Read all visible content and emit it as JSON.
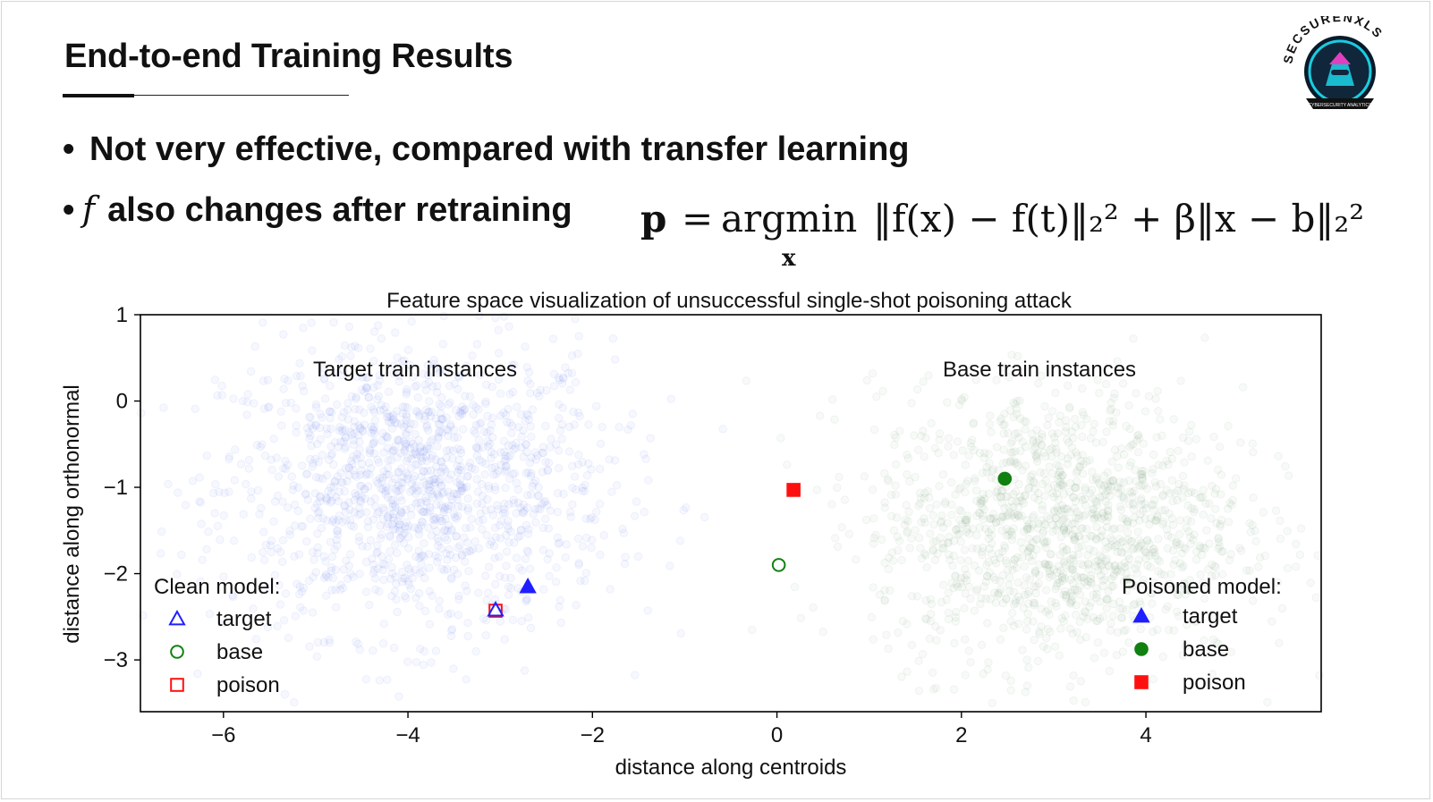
{
  "slide": {
    "title": "End-to-end Training Results",
    "bullets": [
      "Not very effective, compared with transfer learning",
      "also changes after retraining"
    ],
    "bullet_var": "f",
    "formula": {
      "lhs": "p",
      "op": "=",
      "argmin": "argmin",
      "sub": "x",
      "body": "‖f(x) − f(t)‖₂² + β‖x − b‖₂²"
    },
    "logo_text": "SECSURENXLS",
    "logo_tagline": "CYBERSECURITY ANALYTICS"
  },
  "colors": {
    "target": "#1f1fff",
    "base": "#108010",
    "poison": "#ff1010",
    "target_cloud": "#5a7ae6",
    "base_cloud": "#6f9a6f"
  },
  "chart_data": {
    "type": "scatter",
    "title": "Feature space visualization of unsuccessful single-shot poisoning attack",
    "xlabel": "distance along centroids",
    "ylabel": "distance along orthonormal",
    "xlim": [
      -6.9,
      5.9
    ],
    "ylim": [
      -3.6,
      1.0
    ],
    "xticks": [
      -6,
      -4,
      -2,
      0,
      2,
      4
    ],
    "xtick_labels": [
      "−6",
      "−4",
      "−2",
      "0",
      "2",
      "4"
    ],
    "yticks": [
      1,
      0,
      -1,
      -2,
      -3
    ],
    "ytick_labels": [
      "1",
      "0",
      "−1",
      "−2",
      "−3"
    ],
    "grid": false,
    "clusters": [
      {
        "name": "Target train instances",
        "center": [
          -3.9,
          -1.0
        ],
        "spread": [
          1.05,
          0.85
        ],
        "color_key": "target_cloud"
      },
      {
        "name": "Base train instances",
        "center": [
          3.05,
          -1.45
        ],
        "spread": [
          1.0,
          0.8
        ],
        "color_key": "base_cloud"
      }
    ],
    "clean_model": {
      "legend_title": "Clean model:",
      "points": [
        {
          "label": "target",
          "marker": "triangle",
          "filled": false,
          "x": -3.05,
          "y": -2.42
        },
        {
          "label": "base",
          "marker": "circle",
          "filled": false,
          "x": 0.02,
          "y": -1.9
        },
        {
          "label": "poison",
          "marker": "square",
          "filled": false,
          "x": -3.05,
          "y": -2.43
        }
      ]
    },
    "poisoned_model": {
      "legend_title": "Poisoned model:",
      "points": [
        {
          "label": "target",
          "marker": "triangle",
          "filled": true,
          "x": -2.7,
          "y": -2.15
        },
        {
          "label": "base",
          "marker": "circle",
          "filled": true,
          "x": 2.47,
          "y": -0.9
        },
        {
          "label": "poison",
          "marker": "square",
          "filled": true,
          "x": 0.18,
          "y": -1.03
        }
      ]
    }
  }
}
